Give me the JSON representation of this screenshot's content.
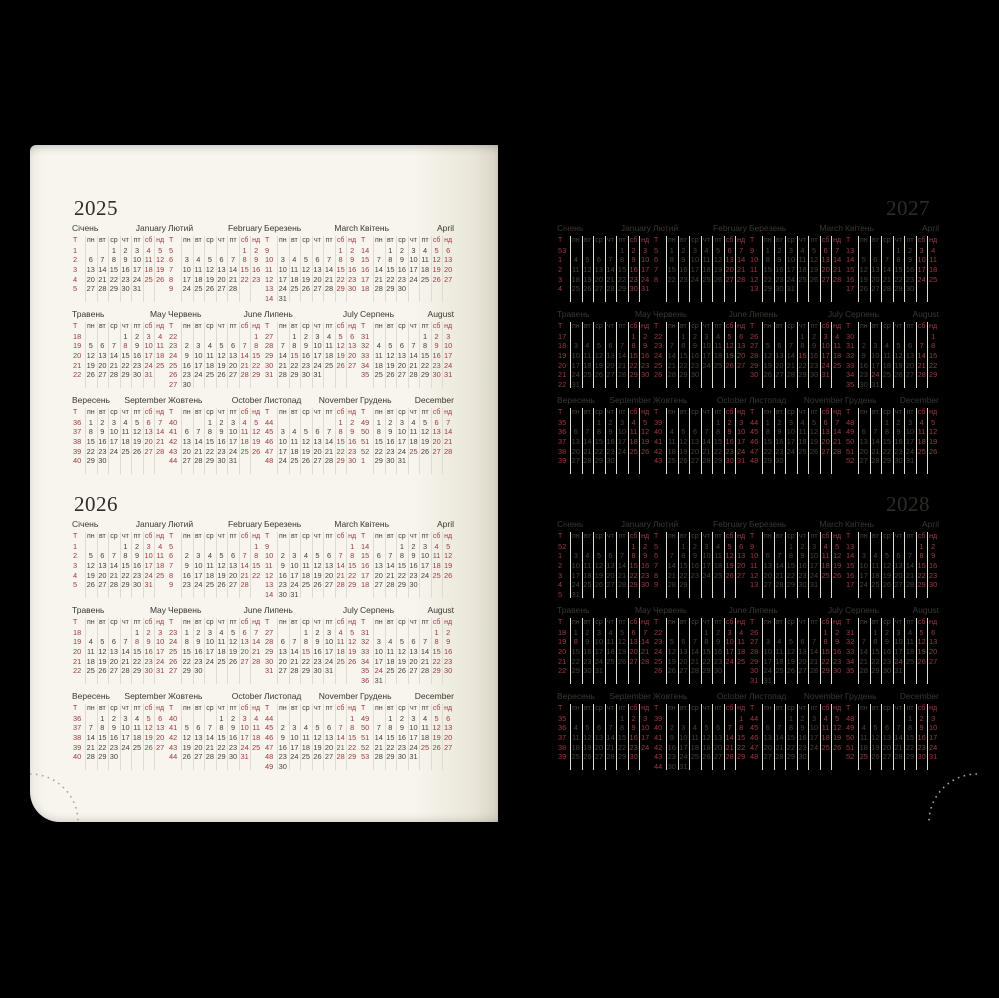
{
  "calendar": {
    "weekday_headers": [
      "Т",
      "пн",
      "вт",
      "ср",
      "чт",
      "пт",
      "сб",
      "нд"
    ],
    "months": [
      {
        "ua": "Січень",
        "en": "January"
      },
      {
        "ua": "Лютий",
        "en": "February"
      },
      {
        "ua": "Березень",
        "en": "March"
      },
      {
        "ua": "Квітень",
        "en": "April"
      },
      {
        "ua": "Травень",
        "en": "May"
      },
      {
        "ua": "Червень",
        "en": "June"
      },
      {
        "ua": "Липень",
        "en": "July"
      },
      {
        "ua": "Серпень",
        "en": "August"
      },
      {
        "ua": "Вересень",
        "en": "September"
      },
      {
        "ua": "Жовтень",
        "en": "October"
      },
      {
        "ua": "Листопад",
        "en": "November"
      },
      {
        "ua": "Грудень",
        "en": "December"
      }
    ],
    "left_page_years": [
      "2025",
      "2026"
    ],
    "right_page_years": [
      "2027",
      "2028"
    ],
    "week_start": "monday",
    "week_number_column": true,
    "red_holidays": [
      {
        "month": 5,
        "day": 8
      },
      {
        "month": 7,
        "day": 15
      },
      {
        "month": 8,
        "day": 24
      },
      {
        "month": 12,
        "day": 25
      }
    ]
  },
  "colors": {
    "background": "#000000",
    "page": "#f6f4ec",
    "text": "#45403a",
    "weekday_text": "#6b655d",
    "accent_red": "#9c3a42",
    "separator": "#dedbd0",
    "perforation_dots": "#aaa697"
  }
}
